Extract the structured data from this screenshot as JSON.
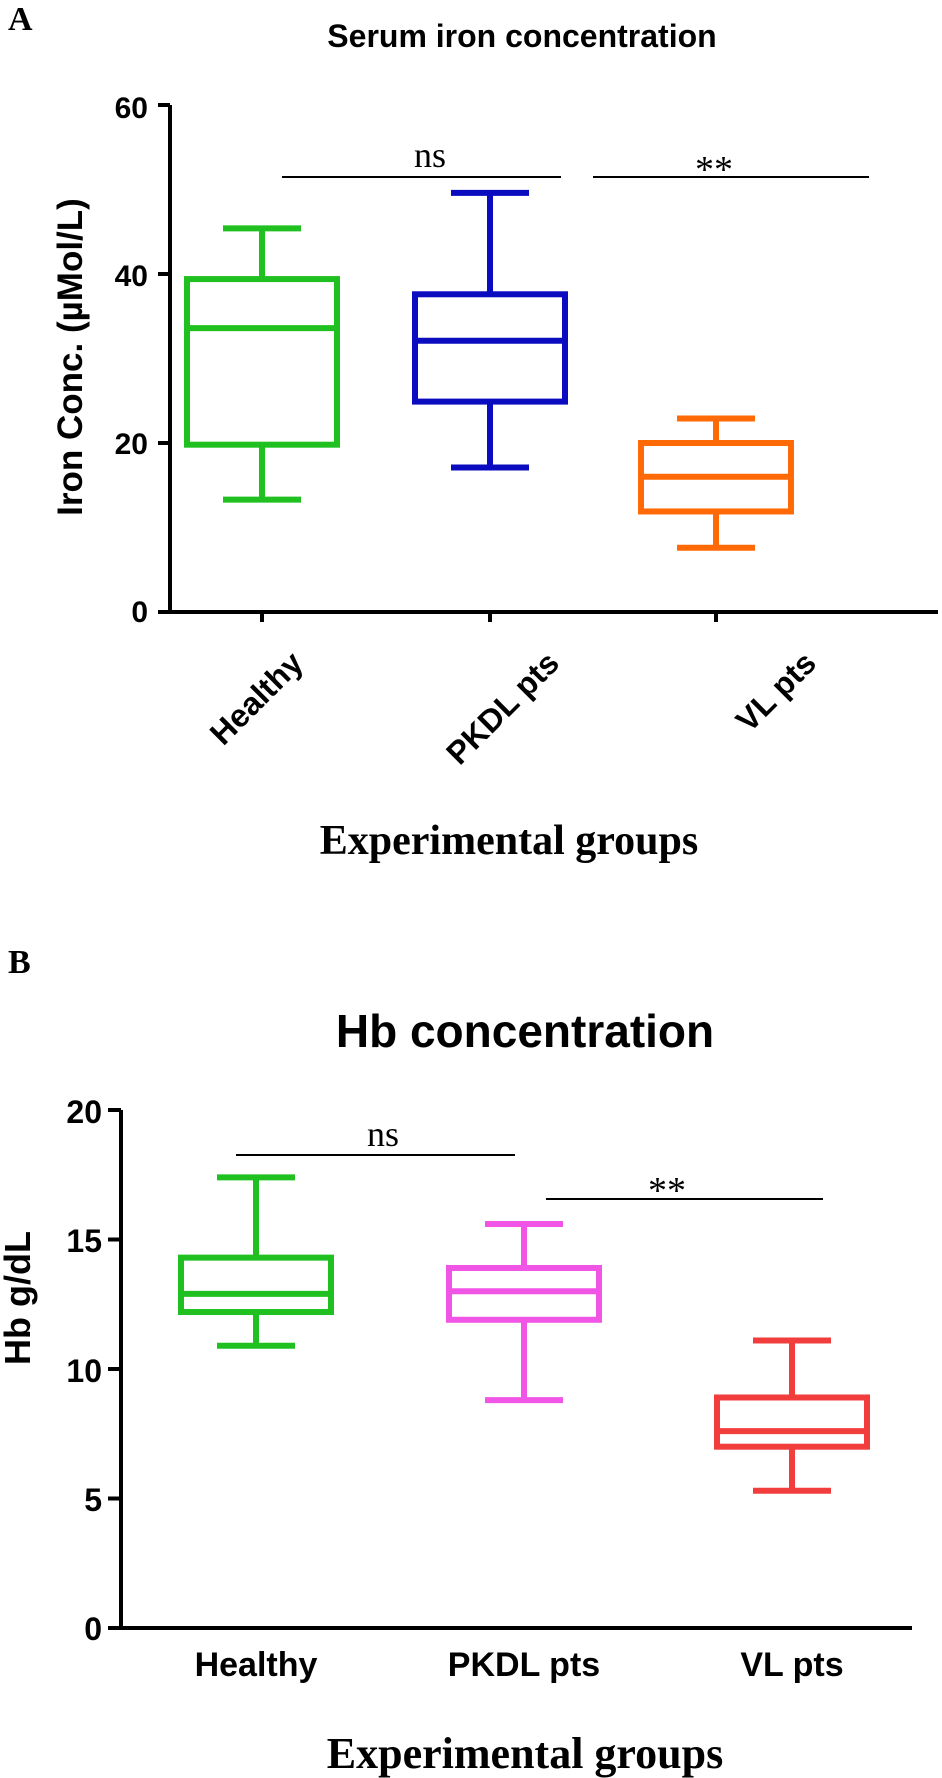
{
  "panels": [
    {
      "label": "A"
    },
    {
      "label": "B"
    }
  ],
  "chart_data": [
    {
      "type": "box",
      "title": "Serum iron concentration",
      "xlabel": "Experimental groups",
      "ylabel": "Iron Conc. (µMol/L)",
      "ylim": [
        0,
        60
      ],
      "yticks": [
        "0",
        "20",
        "40",
        "60"
      ],
      "categories": [
        "Healthy",
        "PKDL pts",
        "VL pts"
      ],
      "boxes": [
        {
          "category": "Healthy",
          "min": 13.3,
          "q1": 19.8,
          "median": 33.6,
          "q3": 39.4,
          "max": 45.4,
          "color": "#1fc01f"
        },
        {
          "category": "PKDL pts",
          "min": 17.1,
          "q1": 24.9,
          "median": 32.1,
          "q3": 37.6,
          "max": 49.6,
          "color": "#0b0bc0"
        },
        {
          "category": "VL pts",
          "min": 7.6,
          "q1": 11.9,
          "median": 16.0,
          "q3": 20.0,
          "max": 22.9,
          "color": "#ff6a06"
        }
      ],
      "significance": [
        {
          "from": "Healthy",
          "to": "PKDL pts",
          "label": "ns"
        },
        {
          "from": "PKDL pts",
          "to": "VL pts",
          "label": "**"
        }
      ]
    },
    {
      "type": "box",
      "title": "Hb concentration",
      "xlabel": "Experimental groups",
      "ylabel": "Hb g/dL",
      "ylim": [
        0,
        20
      ],
      "yticks": [
        "0",
        "5",
        "10",
        "15",
        "20"
      ],
      "categories": [
        "Healthy",
        "PKDL pts",
        "VL pts"
      ],
      "boxes": [
        {
          "category": "Healthy",
          "min": 10.9,
          "q1": 12.2,
          "median": 12.9,
          "q3": 14.3,
          "max": 17.4,
          "color": "#1fc01f"
        },
        {
          "category": "PKDL pts",
          "min": 8.8,
          "q1": 11.9,
          "median": 13.0,
          "q3": 13.9,
          "max": 15.6,
          "color": "#f155e6"
        },
        {
          "category": "VL pts",
          "min": 5.3,
          "q1": 7.0,
          "median": 7.6,
          "q3": 8.9,
          "max": 11.1,
          "color": "#f23d3d"
        }
      ],
      "significance": [
        {
          "from": "Healthy",
          "to": "PKDL pts",
          "label": "ns"
        },
        {
          "from": "PKDL pts",
          "to": "VL pts",
          "label": "**"
        }
      ]
    }
  ]
}
